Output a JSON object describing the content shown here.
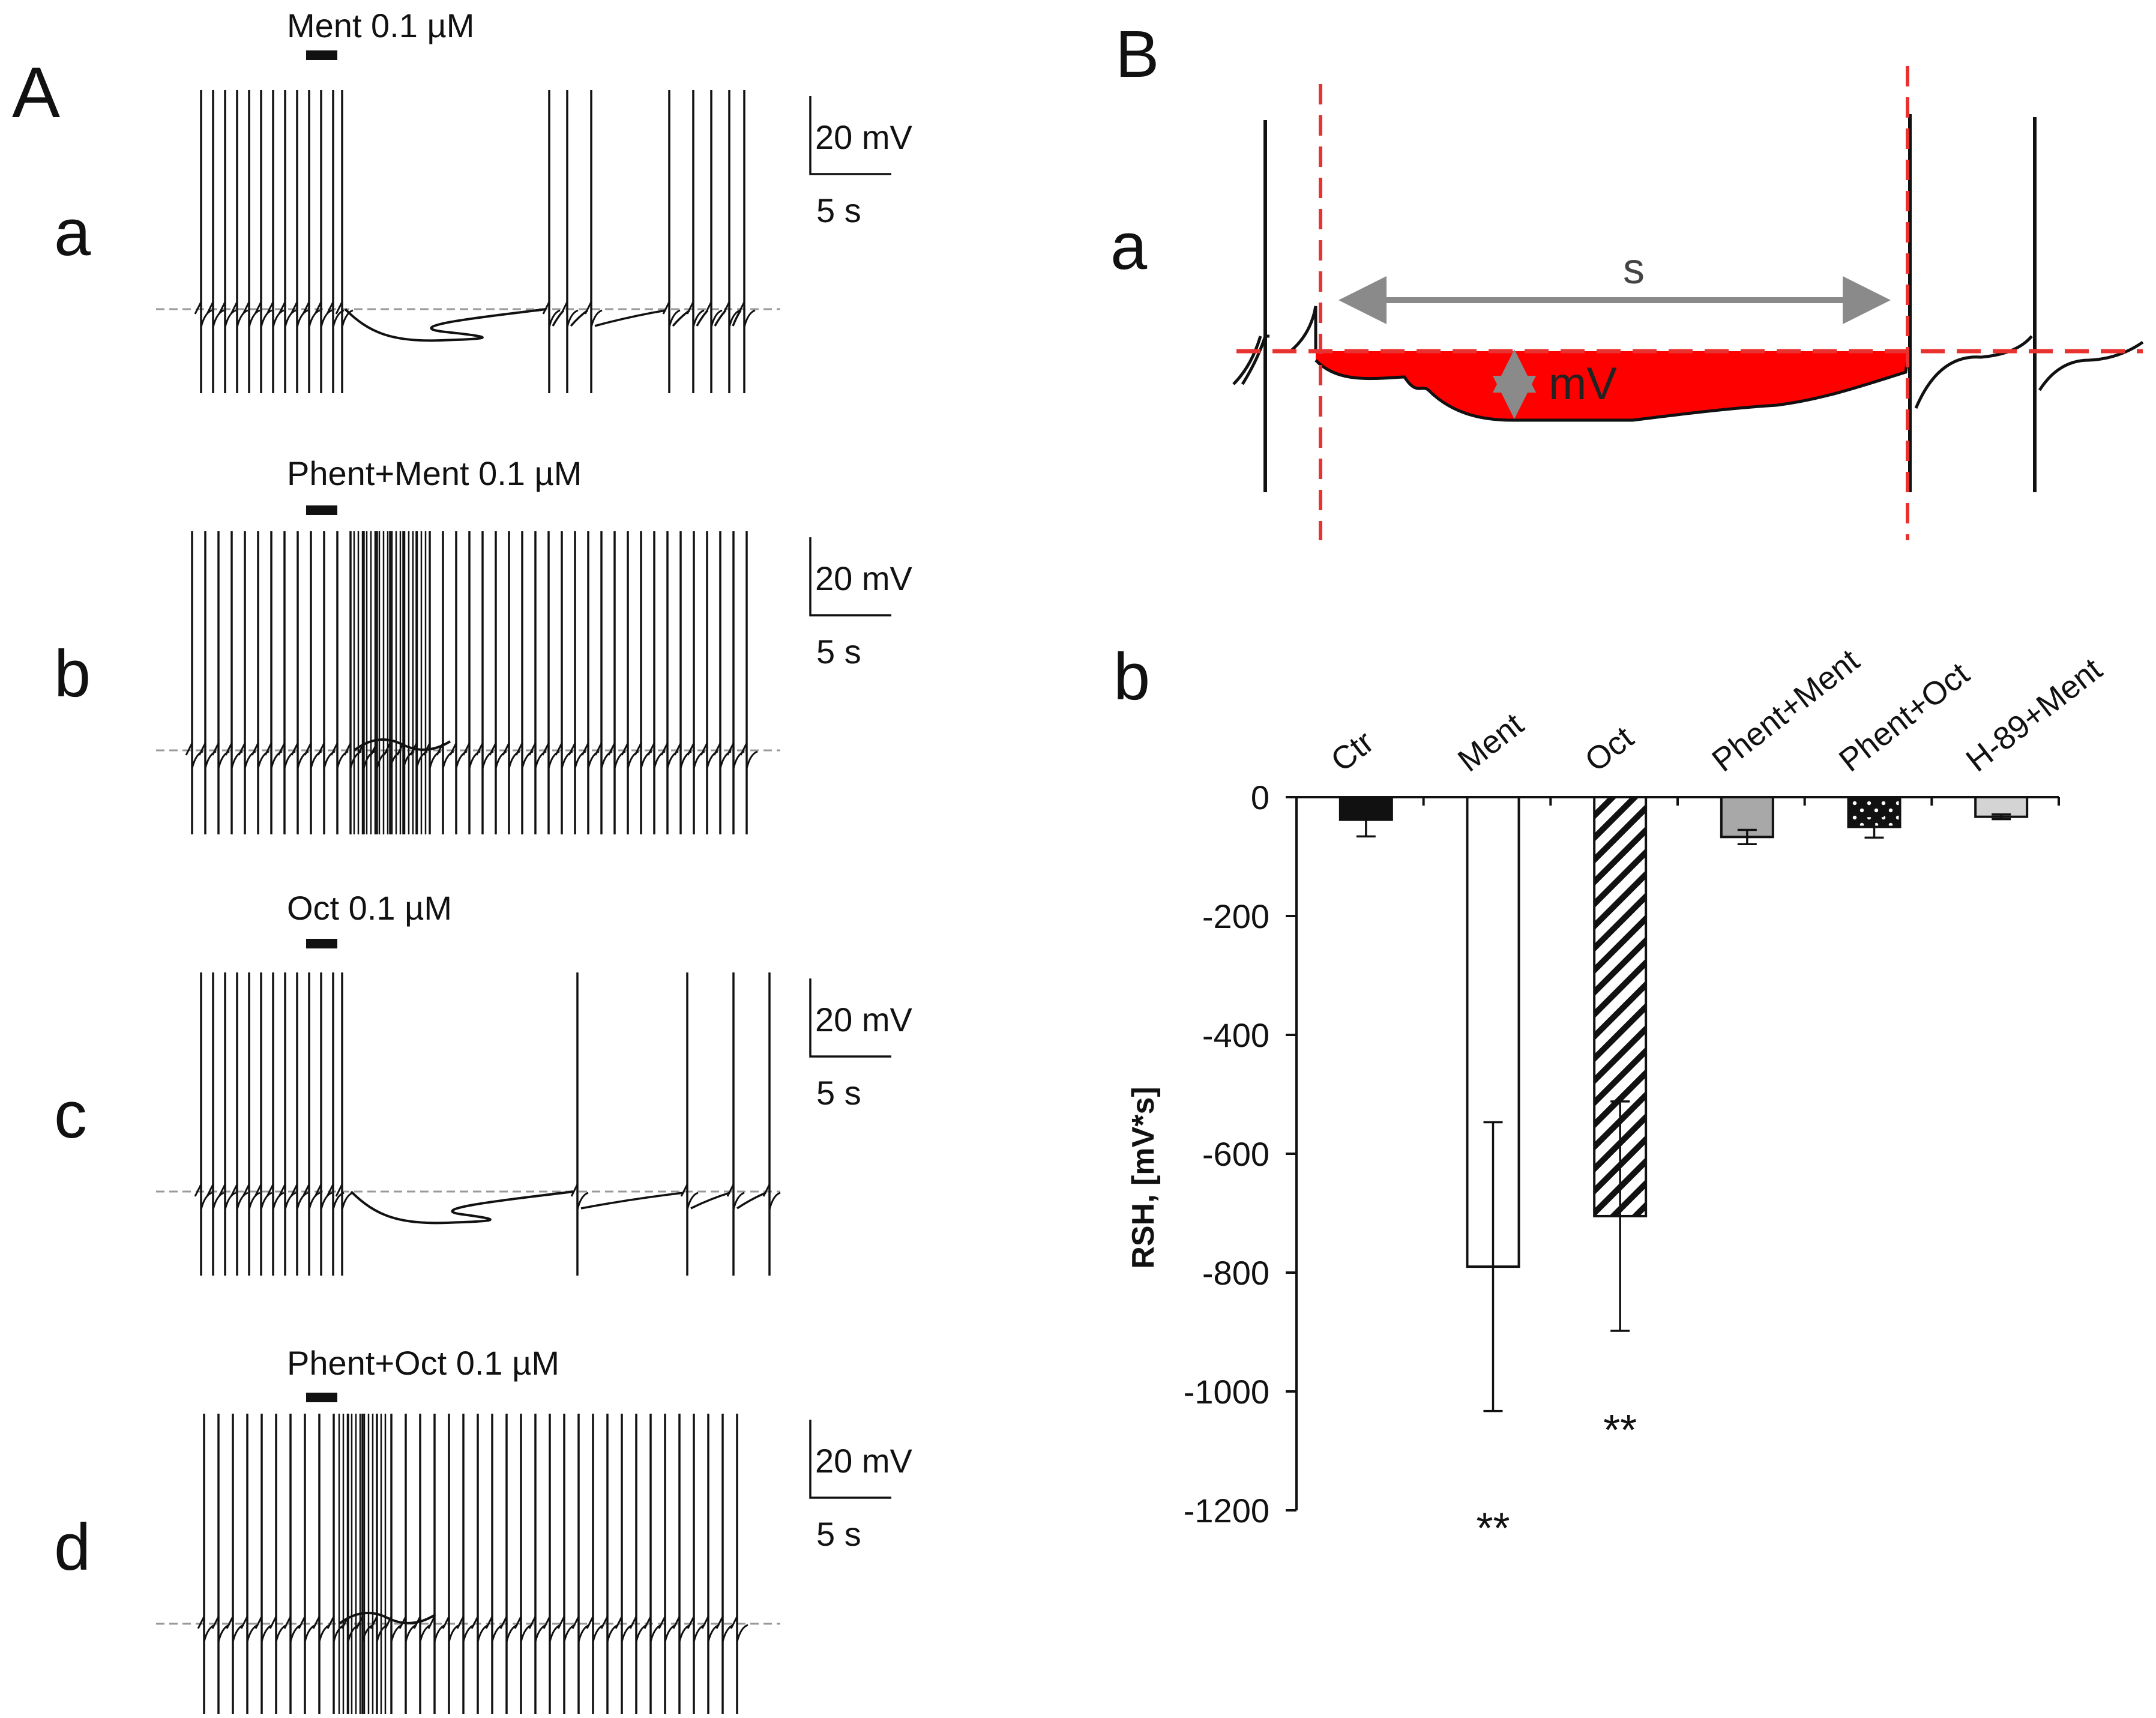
{
  "panel_A": {
    "label": "A",
    "traces": [
      {
        "label": "a",
        "drug": "Ment 0.1 µM",
        "scale_mv": "20 mV",
        "scale_s": "5 s",
        "pattern": "hyperpolarization"
      },
      {
        "label": "b",
        "drug": "Phent+Ment 0.1 µM",
        "scale_mv": "20 mV",
        "scale_s": "5 s",
        "pattern": "continuous"
      },
      {
        "label": "c",
        "drug": "Oct 0.1 µM",
        "scale_mv": "20 mV",
        "scale_s": "5 s",
        "pattern": "hyperpolarization"
      },
      {
        "label": "d",
        "drug": "Phent+Oct 0.1 µM",
        "scale_mv": "20 mV",
        "scale_s": "5 s",
        "pattern": "continuous"
      }
    ]
  },
  "panel_B": {
    "label": "B",
    "sub_a": {
      "label": "a",
      "span_label": "s",
      "depth_label": "mV",
      "fill_color": "#ff0000",
      "marker_color": "#e8322f"
    },
    "sub_b": {
      "label": "b"
    }
  },
  "chart_data": {
    "type": "bar",
    "ylabel": "RSH, [mV*s]",
    "ylim": [
      -1200,
      0
    ],
    "yticks": [
      0,
      -200,
      -400,
      -600,
      -800,
      -1000,
      -1200
    ],
    "categories": [
      "Ctr",
      "Ment",
      "Oct",
      "Phent+Ment",
      "Phent+Oct",
      "H-89+Ment"
    ],
    "values": [
      -38,
      -790,
      -705,
      -67,
      -50,
      -33
    ],
    "errors": [
      28,
      243,
      193,
      12,
      18,
      4
    ],
    "fills": [
      "black",
      "white",
      "hatch",
      "gray",
      "dots",
      "lightgray"
    ],
    "significance": [
      "",
      "**",
      "**",
      "",
      "",
      ""
    ]
  }
}
